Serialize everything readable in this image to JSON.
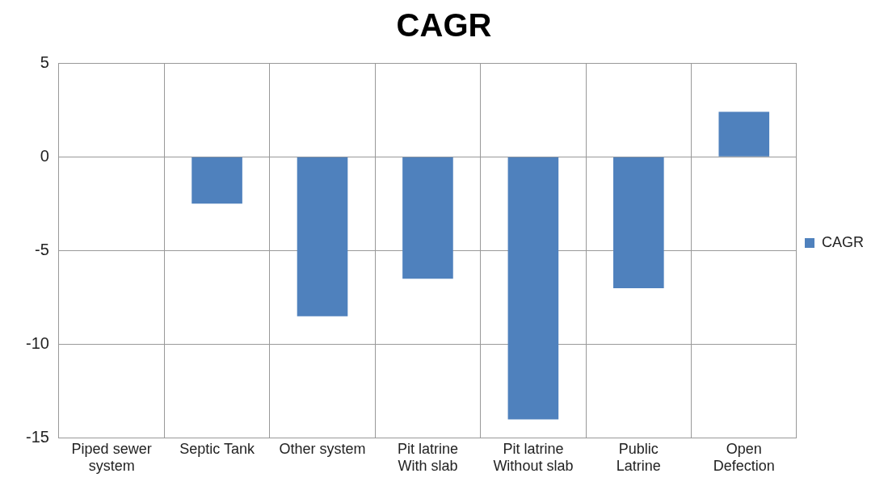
{
  "chart_data": {
    "type": "bar",
    "title": "CAGR",
    "categories": [
      "Piped sewer system",
      "Septic Tank",
      "Other system",
      "Pit latrine With slab",
      "Pit latrine Without slab",
      "Public Latrine",
      "Open Defection"
    ],
    "series": [
      {
        "name": "CAGR",
        "color": "#4f81bd",
        "values": [
          0,
          -2.5,
          -8.5,
          -6.5,
          -14,
          -7,
          2.4
        ]
      }
    ],
    "ylim": [
      -15,
      5
    ],
    "yticks": [
      -15,
      -10,
      -5,
      0,
      5
    ],
    "grid": true,
    "legend": "right"
  }
}
